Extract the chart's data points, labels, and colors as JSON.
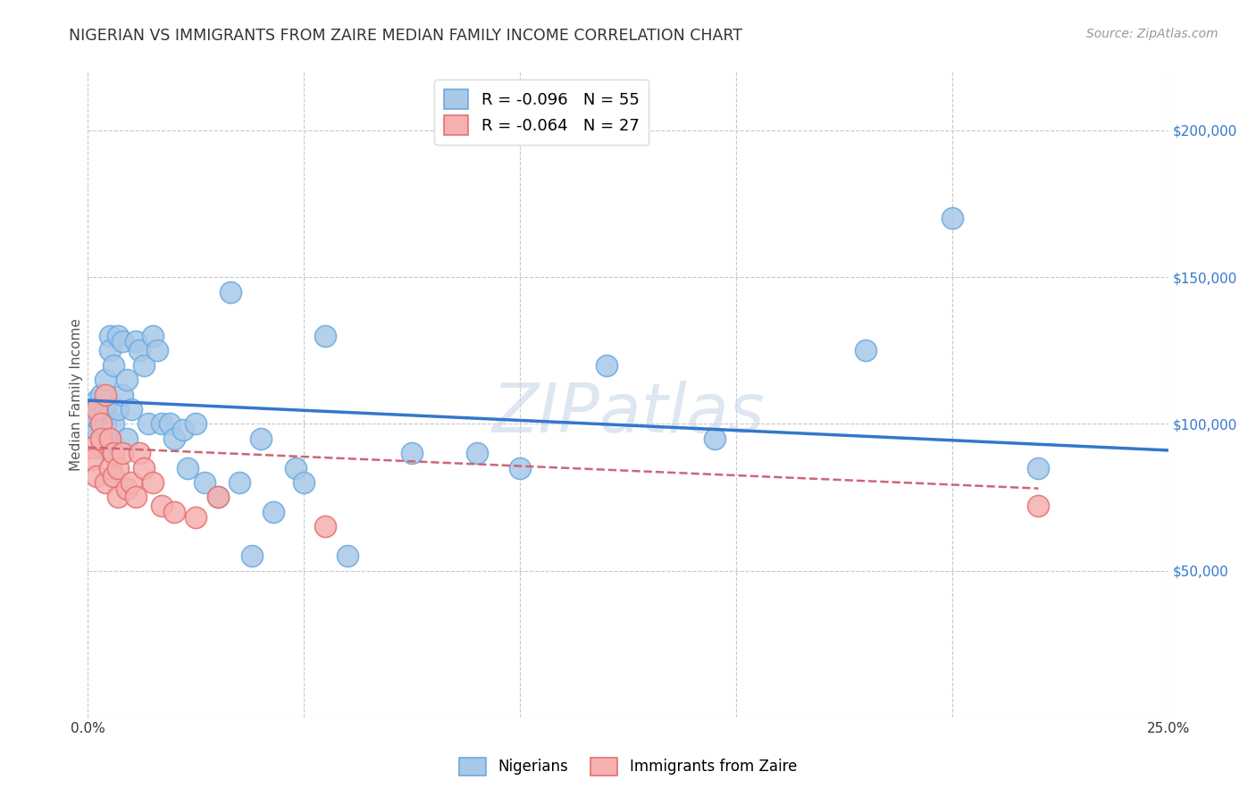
{
  "title": "NIGERIAN VS IMMIGRANTS FROM ZAIRE MEDIAN FAMILY INCOME CORRELATION CHART",
  "source": "Source: ZipAtlas.com",
  "ylabel": "Median Family Income",
  "yticks": [
    0,
    50000,
    100000,
    150000,
    200000
  ],
  "ytick_labels": [
    "",
    "$50,000",
    "$100,000",
    "$150,000",
    "$200,000"
  ],
  "xlim": [
    0.0,
    0.25
  ],
  "ylim": [
    0,
    220000
  ],
  "watermark": "ZIPatlas",
  "legend_line1": "R = -0.096   N = 55",
  "legend_line2": "R = -0.064   N = 27",
  "nigerians_x": [
    0.001,
    0.001,
    0.002,
    0.002,
    0.002,
    0.003,
    0.003,
    0.003,
    0.003,
    0.004,
    0.004,
    0.004,
    0.005,
    0.005,
    0.005,
    0.006,
    0.006,
    0.007,
    0.007,
    0.008,
    0.008,
    0.009,
    0.009,
    0.01,
    0.011,
    0.012,
    0.013,
    0.014,
    0.015,
    0.016,
    0.017,
    0.019,
    0.02,
    0.022,
    0.023,
    0.025,
    0.027,
    0.03,
    0.033,
    0.035,
    0.038,
    0.04,
    0.043,
    0.048,
    0.05,
    0.055,
    0.06,
    0.075,
    0.09,
    0.1,
    0.12,
    0.145,
    0.18,
    0.2,
    0.22
  ],
  "nigerians_y": [
    100000,
    105000,
    98000,
    102000,
    108000,
    95000,
    110000,
    100000,
    92000,
    115000,
    100000,
    105000,
    130000,
    125000,
    95000,
    120000,
    100000,
    130000,
    105000,
    128000,
    110000,
    115000,
    95000,
    105000,
    128000,
    125000,
    120000,
    100000,
    130000,
    125000,
    100000,
    100000,
    95000,
    98000,
    85000,
    100000,
    80000,
    75000,
    145000,
    80000,
    55000,
    95000,
    70000,
    85000,
    80000,
    130000,
    55000,
    90000,
    90000,
    85000,
    120000,
    95000,
    125000,
    170000,
    85000
  ],
  "zaire_x": [
    0.001,
    0.001,
    0.002,
    0.002,
    0.003,
    0.003,
    0.004,
    0.004,
    0.005,
    0.005,
    0.006,
    0.006,
    0.007,
    0.007,
    0.008,
    0.009,
    0.01,
    0.011,
    0.012,
    0.013,
    0.015,
    0.017,
    0.02,
    0.025,
    0.03,
    0.055,
    0.22
  ],
  "zaire_y": [
    92000,
    88000,
    105000,
    82000,
    100000,
    95000,
    110000,
    80000,
    85000,
    95000,
    90000,
    82000,
    75000,
    85000,
    90000,
    78000,
    80000,
    75000,
    90000,
    85000,
    80000,
    72000,
    70000,
    68000,
    75000,
    65000,
    72000
  ],
  "blue_line_x": [
    0.0,
    0.25
  ],
  "blue_line_y": [
    108000,
    91000
  ],
  "pink_line_x": [
    0.0,
    0.22
  ],
  "pink_line_y": [
    92000,
    78000
  ],
  "scatter_size": 300,
  "blue_face": "#a8c8e8",
  "blue_edge": "#6aabe0",
  "pink_face": "#f5b0b0",
  "pink_edge": "#e87070",
  "blue_line_color": "#3377cc",
  "pink_line_color": "#cc6677",
  "grid_color": "#c8c8c8",
  "bg_color": "#ffffff",
  "title_color": "#333333",
  "source_color": "#999999",
  "ytick_color": "#3377cc",
  "title_fontsize": 12.5,
  "label_fontsize": 11,
  "tick_fontsize": 11,
  "source_fontsize": 10,
  "legend_fontsize": 13,
  "watermark_fontsize": 55,
  "watermark_color": "#c8d8e8",
  "watermark_alpha": 0.6
}
